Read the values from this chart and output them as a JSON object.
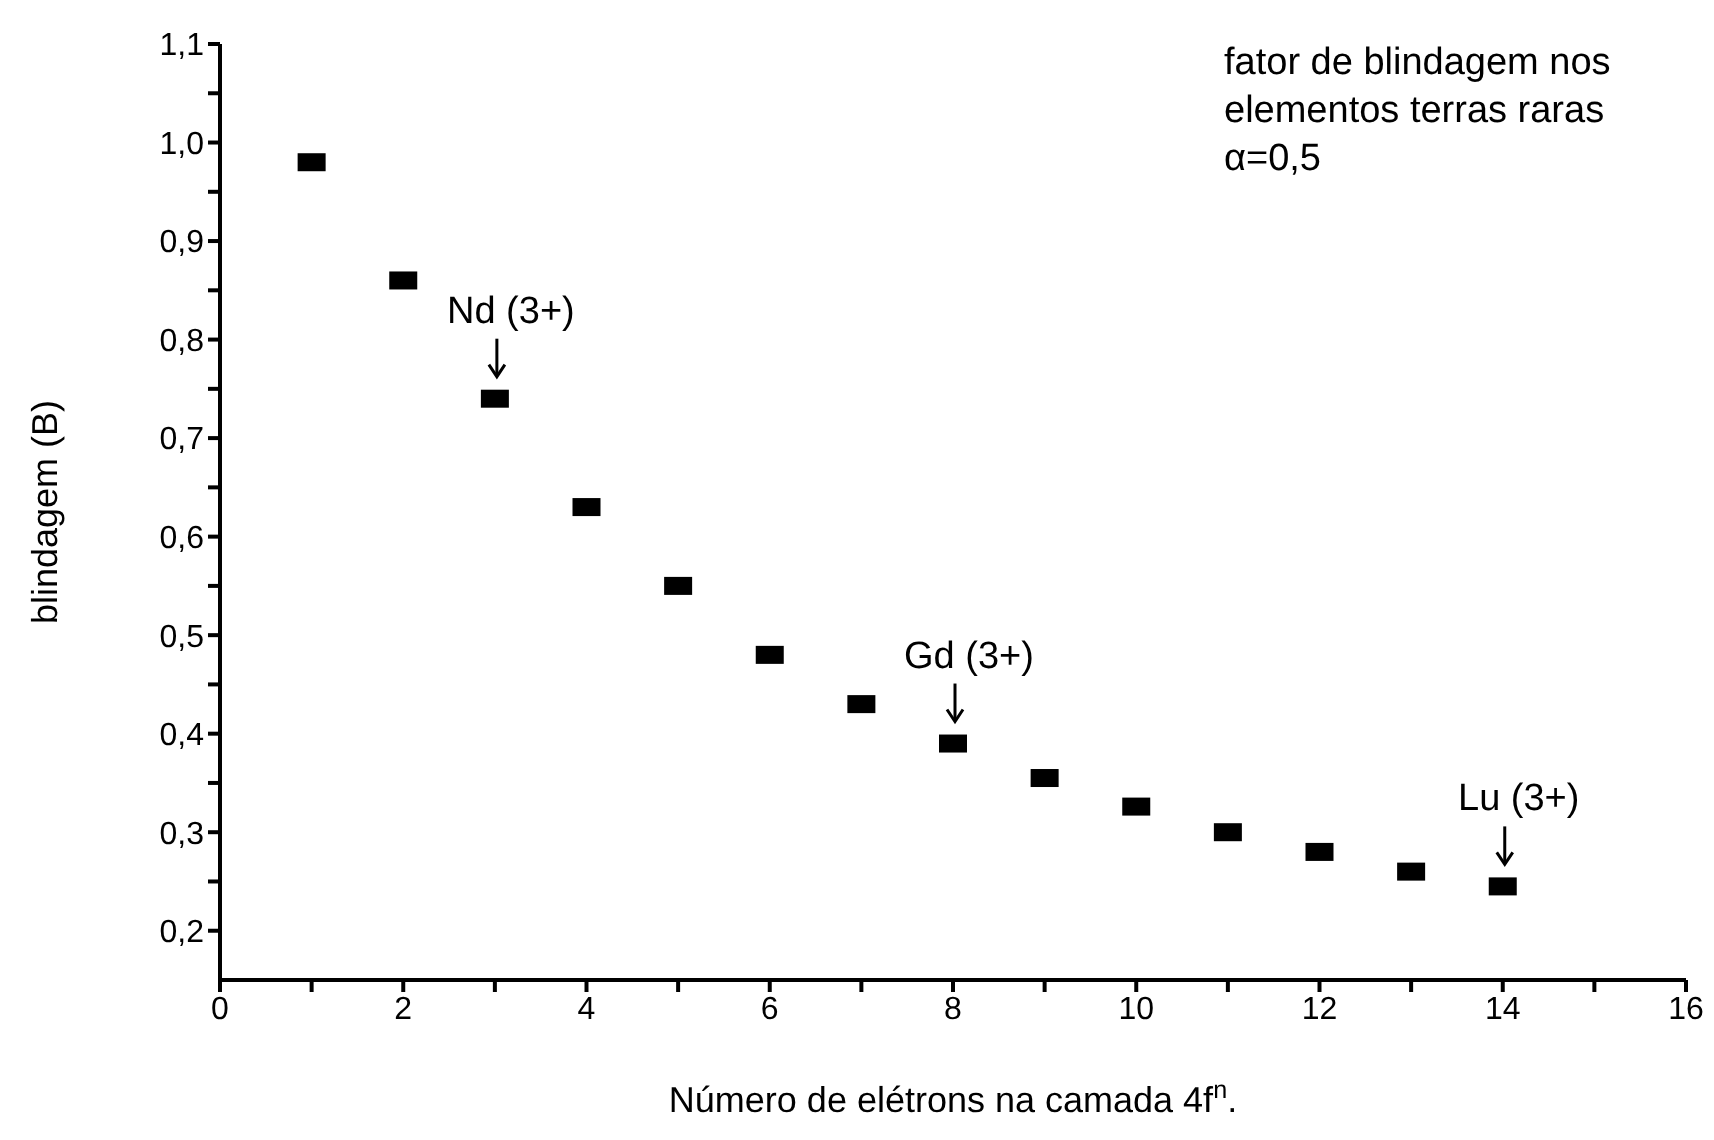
{
  "chart_data": {
    "type": "scatter",
    "xlabel": "Número de elétrons na camada 4f$^{n}$.",
    "ylabel": "blindagem (B)",
    "x": [
      1,
      2,
      3,
      4,
      5,
      6,
      7,
      8,
      9,
      10,
      11,
      12,
      13,
      14
    ],
    "series": [
      {
        "color": "#000000",
        "values": [
          0.98,
          0.86,
          0.74,
          0.63,
          0.55,
          0.48,
          0.43,
          0.39,
          0.355,
          0.326,
          0.3,
          0.28,
          0.26,
          0.245
        ]
      }
    ],
    "marker": "square",
    "grid": false,
    "legend": false,
    "xlim": [
      0,
      16
    ],
    "xticks": [
      0,
      {
        "value": 1,
        "label": null
      },
      2,
      {
        "value": 3,
        "label": null
      },
      4,
      {
        "value": 5,
        "label": null
      },
      6,
      {
        "value": 7,
        "label": null
      },
      8,
      {
        "value": 9,
        "label": null
      },
      10,
      {
        "value": 11,
        "label": null
      },
      12,
      {
        "value": 13,
        "label": null
      },
      14,
      {
        "value": 15,
        "label": null
      },
      16
    ],
    "ylim": [
      0.15,
      1.1
    ],
    "yticks": [
      {
        "value": 0.2,
        "label": "0,2"
      },
      {
        "value": 0.25,
        "label": null
      },
      {
        "value": 0.3,
        "label": "0,3"
      },
      {
        "value": 0.35,
        "label": null
      },
      {
        "value": 0.4,
        "label": "0,4"
      },
      {
        "value": 0.45,
        "label": null
      },
      {
        "value": 0.5,
        "label": "0,5"
      },
      {
        "value": 0.55,
        "label": null
      },
      {
        "value": 0.6,
        "label": "0,6"
      },
      {
        "value": 0.65,
        "label": null
      },
      {
        "value": 0.7,
        "label": "0,7"
      },
      {
        "value": 0.75,
        "label": null
      },
      {
        "value": 0.8,
        "label": "0,8"
      },
      {
        "value": 0.85,
        "label": null
      },
      {
        "value": 0.9,
        "label": "0,9"
      },
      {
        "value": 0.95,
        "label": null
      },
      {
        "value": 1.0,
        "label": "1,0"
      },
      {
        "value": 1.05,
        "label": null
      },
      {
        "value": 1.1,
        "label": "1,1"
      }
    ],
    "annotations": [
      {
        "text": "Nd (3+)",
        "x": 3,
        "y": 0.74
      },
      {
        "text": "Gd (3+)",
        "x": 8,
        "y": 0.39
      },
      {
        "text": "Lu (3+)",
        "x": 14,
        "y": 0.245
      },
      "fator de blindagem nos\nelementos terras raras\nα=0,5"
    ]
  }
}
